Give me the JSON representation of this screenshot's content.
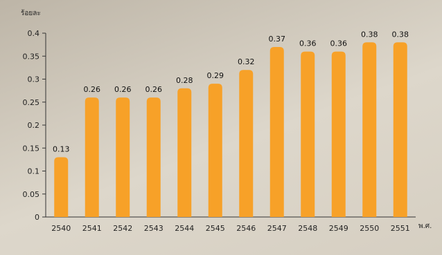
{
  "chart_data": {
    "type": "bar",
    "categories": [
      "2540",
      "2541",
      "2542",
      "2543",
      "2544",
      "2545",
      "2546",
      "2547",
      "2548",
      "2549",
      "2550",
      "2551"
    ],
    "values": [
      0.13,
      0.26,
      0.26,
      0.26,
      0.28,
      0.29,
      0.32,
      0.37,
      0.36,
      0.36,
      0.38,
      0.38
    ],
    "data_labels": [
      "0.13",
      "0.26",
      "0.26",
      "0.26",
      "0.28",
      "0.29",
      "0.32",
      "0.37",
      "0.36",
      "0.36",
      "0.38",
      "0.38"
    ],
    "ylabel": "ร้อยละ",
    "xlabel": "พ.ศ.",
    "ylim": [
      0,
      0.4
    ],
    "yticks": [
      0,
      0.05,
      0.1,
      0.15,
      0.2,
      0.25,
      0.3,
      0.35,
      0.4
    ],
    "ytick_labels": [
      "0",
      "0.05",
      "0.1",
      "0.15",
      "0.2",
      "0.25",
      "0.3",
      "0.35",
      "0.4"
    ],
    "grid": false,
    "bar_color": "#f7a128"
  }
}
